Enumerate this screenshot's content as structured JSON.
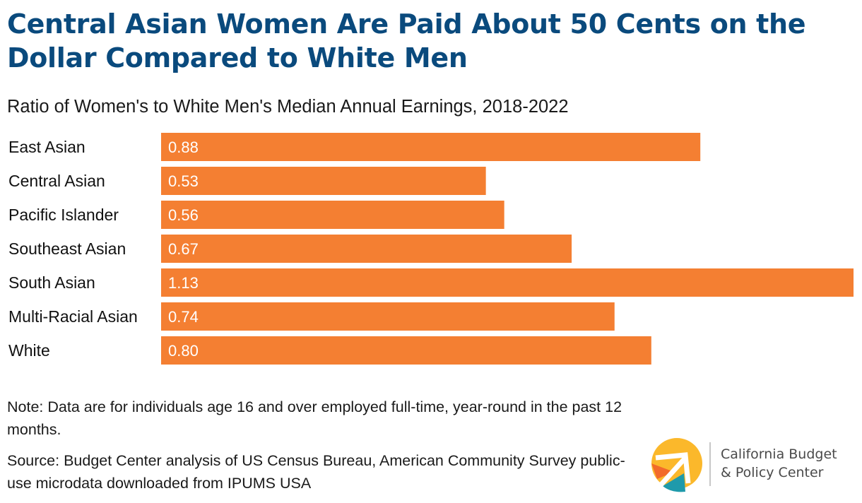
{
  "header": {
    "title": "Central Asian Women Are Paid About 50 Cents on the Dollar Compared to White Men",
    "subtitle": "Ratio of Women's to White Men's Median Annual Earnings, 2018-2022"
  },
  "chart_data": {
    "type": "bar",
    "orientation": "horizontal",
    "title": "Central Asian Women Are Paid About 50 Cents on the Dollar Compared to White Men",
    "subtitle": "Ratio of Women's to White Men's Median Annual Earnings, 2018-2022",
    "xlabel": "",
    "ylabel": "",
    "categories": [
      "East Asian",
      "Central Asian",
      "Pacific Islander",
      "Southeast Asian",
      "South Asian",
      "Multi-Racial Asian",
      "White"
    ],
    "values": [
      0.88,
      0.53,
      0.56,
      0.67,
      1.13,
      0.74,
      0.8
    ],
    "value_labels": [
      "0.88",
      "0.53",
      "0.56",
      "0.67",
      "1.13",
      "0.74",
      "0.80"
    ],
    "xlim": [
      0,
      1.13
    ],
    "grid": false,
    "legend": "none",
    "bar_color": "#f47f32",
    "label_color": "#ffffff"
  },
  "footer": {
    "note": "Note: Data are for individuals age 16 and over employed full-time, year-round in the past 12 months.",
    "source": "Source: Budget Center analysis of US Census Bureau, American Community Survey public-use microdata downloaded from IPUMS USA"
  },
  "logo": {
    "line1": "California Budget",
    "line2": "& Policy Center",
    "colors": {
      "yellow": "#fbb82b",
      "orange": "#f26b2b",
      "teal": "#1f9aab"
    }
  }
}
